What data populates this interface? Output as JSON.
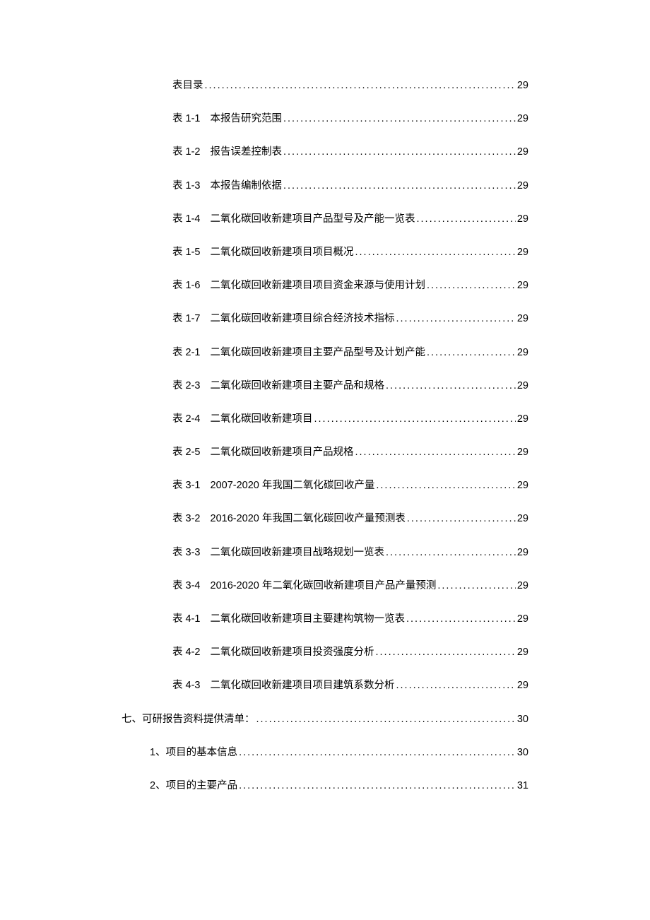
{
  "toc": {
    "tables_header": {
      "label": "表目录",
      "page": "29"
    },
    "table_entries": [
      {
        "label": "表 1-1",
        "title": "本报告研究范围",
        "page": "29"
      },
      {
        "label": "表 1-2",
        "title": "报告误差控制表",
        "page": "29"
      },
      {
        "label": "表 1-3",
        "title": "本报告编制依据",
        "page": "29"
      },
      {
        "label": "表 1-4",
        "title": "二氧化碳回收新建项目产品型号及产能一览表",
        "page": "29"
      },
      {
        "label": "表 1-5",
        "title": "二氧化碳回收新建项目项目概况",
        "page": "29"
      },
      {
        "label": "表 1-6",
        "title": "二氧化碳回收新建项目项目资金来源与使用计划",
        "page": "29"
      },
      {
        "label": "表 1-7",
        "title": "二氧化碳回收新建项目综合经济技术指标",
        "page": "29"
      },
      {
        "label": "表 2-1",
        "title": "二氧化碳回收新建项目主要产品型号及计划产能",
        "page": "29"
      },
      {
        "label": "表 2-3",
        "title": "二氧化碳回收新建项目主要产品和规格",
        "page": "29"
      },
      {
        "label": "表 2-4",
        "title": "二氧化碳回收新建项目",
        "page": "29"
      },
      {
        "label": "表 2-5",
        "title": "二氧化碳回收新建项目产品规格",
        "page": "29"
      },
      {
        "label": "表 3-1",
        "title": "2007-2020 年我国二氧化碳回收产量",
        "page": "29"
      },
      {
        "label": "表 3-2",
        "title": "2016-2020 年我国二氧化碳回收产量预测表",
        "page": "29"
      },
      {
        "label": "表 3-3",
        "title": "二氧化碳回收新建项目战略规划一览表",
        "page": "29"
      },
      {
        "label": "表 3-4",
        "title": "2016-2020 年二氧化碳回收新建项目产品产量预测",
        "page": "29"
      },
      {
        "label": "表 4-1",
        "title": "二氧化碳回收新建项目主要建构筑物一览表",
        "page": "29"
      },
      {
        "label": "表 4-2",
        "title": "二氧化碳回收新建项目投资强度分析",
        "page": "29"
      },
      {
        "label": "表 4-3",
        "title": "二氧化碳回收新建项目项目建筑系数分析",
        "page": "29"
      }
    ],
    "section_seven": {
      "label": "七、可研报告资料提供清单：",
      "page": "30"
    },
    "section_seven_subs": [
      {
        "label": "1、项目的基本信息",
        "page": "30"
      },
      {
        "label": "2、项目的主要产品",
        "page": "31"
      }
    ]
  },
  "styles": {
    "text_color": "#000000",
    "background_color": "#ffffff",
    "font_size": 14.5,
    "line_spacing": 24
  }
}
